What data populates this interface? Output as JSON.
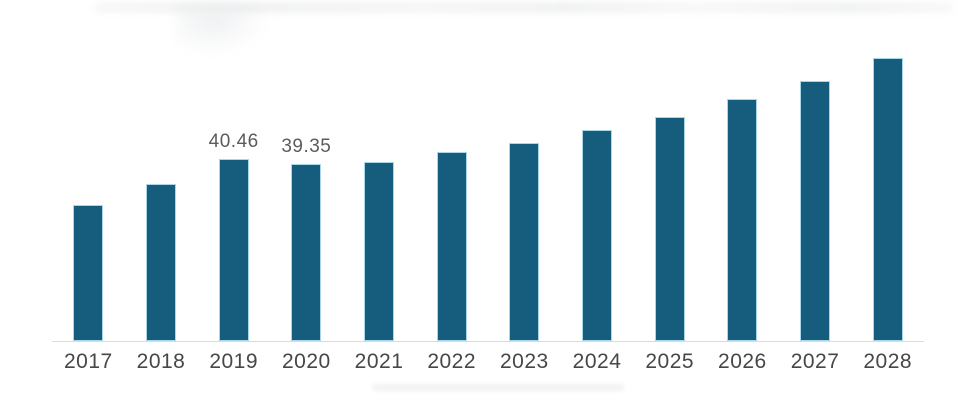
{
  "chart_data": {
    "type": "bar",
    "title": "",
    "xlabel": "",
    "ylabel": "",
    "categories": [
      "2017",
      "2018",
      "2019",
      "2020",
      "2021",
      "2022",
      "2023",
      "2024",
      "2025",
      "2026",
      "2027",
      "2028"
    ],
    "values": [
      30.2,
      34.9,
      40.46,
      39.35,
      39.8,
      41.9,
      44.0,
      46.9,
      49.8,
      53.8,
      57.8,
      62.9
    ],
    "shown_value_labels": {
      "2019": "40.46",
      "2020": "39.35"
    },
    "ylim": [
      0,
      66.9
    ],
    "grid": false,
    "legend": false,
    "y_axis_visible": false,
    "x_axis_line": true
  },
  "colors": {
    "bar_fill": "#165C7D",
    "bar_edge": "#A9D6E9",
    "axis_line": "#DCDCDC",
    "x_label_text": "#474747",
    "value_label_text": "#5C5C5C"
  }
}
